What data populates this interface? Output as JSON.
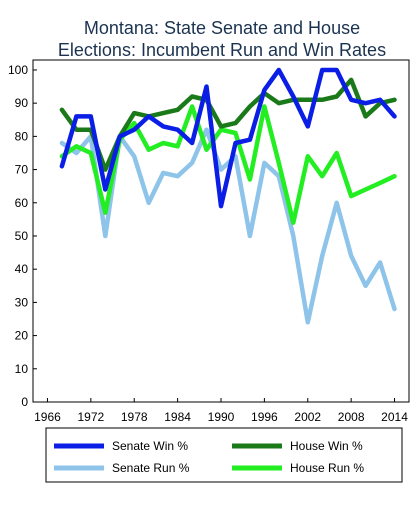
{
  "chart_data": {
    "type": "line",
    "title_lines": [
      "Montana: State Senate and House",
      "Elections: Incumbent Run and Win Rates"
    ],
    "xlabel": "",
    "ylabel": "",
    "x_ticks": [
      "1966",
      "1972",
      "1978",
      "1984",
      "1990",
      "1996",
      "2002",
      "2008",
      "2014"
    ],
    "y_ticks": [
      "0",
      "10",
      "20",
      "30",
      "40",
      "50",
      "60",
      "70",
      "80",
      "90",
      "100"
    ],
    "xlim": [
      1964,
      2016
    ],
    "ylim": [
      0,
      103
    ],
    "grid": false,
    "legend_position": "bottom",
    "series": [
      {
        "name": "Senate Win %",
        "color": "#0a1ee6",
        "x": [
          1968,
          1970,
          1972,
          1974,
          1976,
          1978,
          1980,
          1982,
          1984,
          1986,
          1988,
          1990,
          1992,
          1994,
          1996,
          1998,
          2000,
          2002,
          2004,
          2006,
          2008,
          2010,
          2012,
          2014
        ],
        "y": [
          71,
          86,
          86,
          64,
          80,
          82,
          86,
          83,
          82,
          78,
          95,
          59,
          78,
          79,
          94,
          100,
          92,
          83,
          100,
          100,
          91,
          90,
          91,
          86
        ]
      },
      {
        "name": "Senate Run %",
        "color": "#8ec3ea",
        "x": [
          1968,
          1970,
          1972,
          1974,
          1976,
          1978,
          1980,
          1982,
          1984,
          1986,
          1988,
          1990,
          1992,
          1994,
          1996,
          1998,
          2000,
          2002,
          2004,
          2006,
          2008,
          2010,
          2012,
          2014
        ],
        "y": [
          78,
          75,
          80,
          50,
          80,
          74,
          60,
          69,
          68,
          72,
          82,
          70,
          74,
          50,
          72,
          68,
          50,
          24,
          44,
          60,
          44,
          35,
          42,
          28
        ]
      },
      {
        "name": "House Win %",
        "color": "#1a7a1a",
        "x": [
          1968,
          1970,
          1972,
          1974,
          1976,
          1978,
          1980,
          1982,
          1984,
          1986,
          1988,
          1990,
          1992,
          1994,
          1996,
          1998,
          2000,
          2002,
          2004,
          2006,
          2008,
          2010,
          2012,
          2014
        ],
        "y": [
          88,
          82,
          82,
          70,
          80,
          87,
          86,
          87,
          88,
          92,
          91,
          83,
          84,
          89,
          93,
          90,
          91,
          91,
          91,
          92,
          97,
          86,
          90,
          91
        ]
      },
      {
        "name": "House Run %",
        "color": "#22ee22",
        "x": [
          1968,
          1970,
          1972,
          1974,
          1976,
          1978,
          1980,
          1982,
          1984,
          1986,
          1988,
          1990,
          1992,
          1994,
          1996,
          1998,
          2000,
          2002,
          2004,
          2006,
          2008,
          2010,
          2012,
          2014
        ],
        "y": [
          74,
          77,
          75,
          57,
          79,
          84,
          76,
          78,
          77,
          89,
          76,
          82,
          81,
          67,
          89,
          72,
          54,
          74,
          68,
          75,
          62,
          64,
          66,
          68
        ]
      }
    ],
    "legend_order": [
      "Senate Win %",
      "House Win %",
      "Senate Run %",
      "House Run %"
    ]
  }
}
